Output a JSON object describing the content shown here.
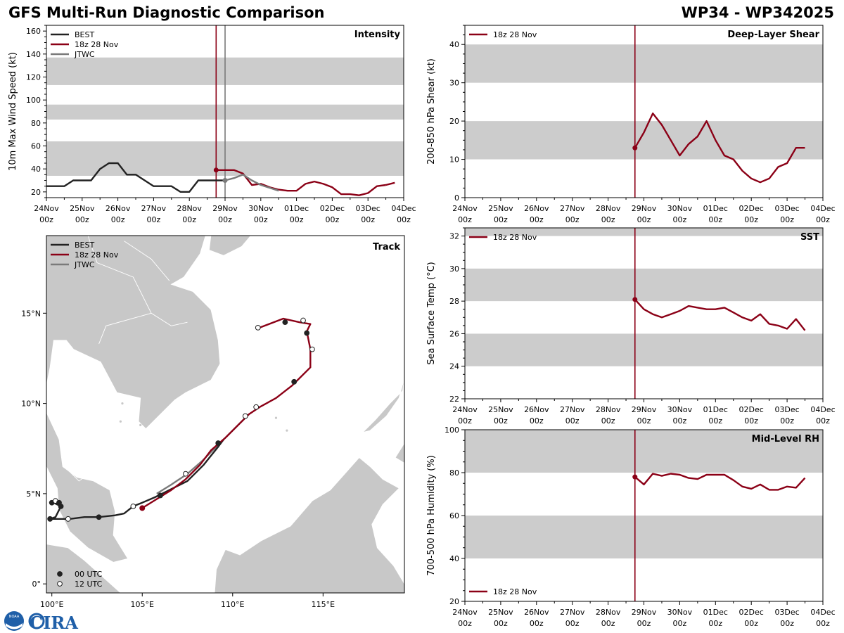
{
  "header": {
    "title": "GFS Multi-Run Diagnostic Comparison",
    "storm_id": "WP34 - WP342025"
  },
  "logo": {
    "text": "CIRA",
    "badge": "NOAA"
  },
  "colors": {
    "best": "#222222",
    "gfs": "#8b0016",
    "jtwc": "#7a7a7a",
    "band": "#cccccc",
    "land": "#c8c8c8"
  },
  "chart_data": [
    {
      "id": "intensity",
      "type": "line",
      "title": "Intensity",
      "ylabel": "10m Max Wind Speed (kt)",
      "xlim": [
        0,
        10
      ],
      "ylim": [
        15,
        165
      ],
      "yticks": [
        20,
        40,
        60,
        80,
        100,
        120,
        140,
        160
      ],
      "xtick_labels": [
        [
          "24Nov",
          "00z"
        ],
        [
          "25Nov",
          "00z"
        ],
        [
          "26Nov",
          "00z"
        ],
        [
          "27Nov",
          "00z"
        ],
        [
          "28Nov",
          "00z"
        ],
        [
          "29Nov",
          "00z"
        ],
        [
          "30Nov",
          "00z"
        ],
        [
          "01Dec",
          "00z"
        ],
        [
          "02Dec",
          "00z"
        ],
        [
          "03Dec",
          "00z"
        ],
        [
          "04Dec",
          "00z"
        ]
      ],
      "bands": [
        [
          34,
          64
        ],
        [
          83,
          96
        ],
        [
          113,
          137
        ]
      ],
      "init_line": 4.75,
      "jtwc_line": 5.0,
      "legend": [
        "BEST",
        "18z 28 Nov",
        "JTWC"
      ],
      "series": [
        {
          "name": "BEST",
          "x": [
            0,
            0.25,
            0.5,
            0.75,
            1,
            1.25,
            1.5,
            1.75,
            2,
            2.25,
            2.5,
            2.75,
            3,
            3.25,
            3.5,
            3.75,
            4,
            4.25,
            4.5,
            4.75,
            5
          ],
          "values": [
            25,
            25,
            25,
            30,
            30,
            30,
            40,
            45,
            45,
            35,
            35,
            30,
            25,
            25,
            25,
            20,
            20,
            30,
            30,
            30,
            30
          ]
        },
        {
          "name": "18z 28 Nov",
          "x": [
            4.75,
            5,
            5.25,
            5.5,
            5.75,
            6,
            6.25,
            6.5,
            6.75,
            7,
            7.25,
            7.5,
            7.75,
            8,
            8.25,
            8.5,
            8.75,
            9,
            9.25,
            9.5
          ],
          "values": [
            39,
            39,
            39,
            36,
            26,
            27,
            24,
            22,
            21,
            21,
            27,
            29,
            27,
            24,
            18,
            18,
            17,
            19,
            25,
            26
          ]
        },
        {
          "name": "18z 28 Nov tail",
          "x": [
            9.5,
            9.75
          ],
          "values": [
            26,
            28
          ]
        },
        {
          "name": "JTWC",
          "x": [
            5,
            5.25,
            5.5,
            5.75,
            6,
            6.5
          ],
          "values": [
            30,
            32,
            35,
            30,
            26,
            21
          ]
        }
      ]
    },
    {
      "id": "shear",
      "type": "line",
      "title": "Deep-Layer Shear",
      "ylabel": "200-850 hPa Shear (kt)",
      "xlim": [
        0,
        10
      ],
      "ylim": [
        0,
        45
      ],
      "yticks": [
        0,
        10,
        20,
        30,
        40
      ],
      "xtick_labels": [
        [
          "24Nov",
          "00z"
        ],
        [
          "25Nov",
          "00z"
        ],
        [
          "26Nov",
          "00z"
        ],
        [
          "27Nov",
          "00z"
        ],
        [
          "28Nov",
          "00z"
        ],
        [
          "29Nov",
          "00z"
        ],
        [
          "30Nov",
          "00z"
        ],
        [
          "01Dec",
          "00z"
        ],
        [
          "02Dec",
          "00z"
        ],
        [
          "03Dec",
          "00z"
        ],
        [
          "04Dec",
          "00z"
        ]
      ],
      "bands": [
        [
          10,
          20
        ],
        [
          30,
          40
        ]
      ],
      "init_line": 4.75,
      "legend": [
        "18z 28 Nov"
      ],
      "series": [
        {
          "name": "18z 28 Nov",
          "x": [
            4.75,
            5,
            5.25,
            5.5,
            5.75,
            6,
            6.25,
            6.5,
            6.75,
            7,
            7.25,
            7.5,
            7.75,
            8,
            8.25,
            8.5,
            8.75,
            9,
            9.25,
            9.5
          ],
          "values": [
            13,
            17,
            22,
            19,
            15,
            11,
            14,
            16,
            20,
            15,
            11,
            10,
            7,
            5,
            4,
            5,
            8,
            9,
            13,
            13
          ]
        }
      ]
    },
    {
      "id": "sst",
      "type": "line",
      "title": "SST",
      "ylabel": "Sea Surface Temp (°C)",
      "xlim": [
        0,
        10
      ],
      "ylim": [
        22,
        32.5
      ],
      "yticks": [
        22,
        24,
        26,
        28,
        30,
        32
      ],
      "xtick_labels": [
        [
          "24Nov",
          "00z"
        ],
        [
          "25Nov",
          "00z"
        ],
        [
          "26Nov",
          "00z"
        ],
        [
          "27Nov",
          "00z"
        ],
        [
          "28Nov",
          "00z"
        ],
        [
          "29Nov",
          "00z"
        ],
        [
          "30Nov",
          "00z"
        ],
        [
          "01Dec",
          "00z"
        ],
        [
          "02Dec",
          "00z"
        ],
        [
          "03Dec",
          "00z"
        ],
        [
          "04Dec",
          "00z"
        ]
      ],
      "bands": [
        [
          24,
          26
        ],
        [
          28,
          30
        ],
        [
          32,
          32.5
        ]
      ],
      "init_line": 4.75,
      "legend": [
        "18z 28 Nov"
      ],
      "series": [
        {
          "name": "18z 28 Nov",
          "x": [
            4.75,
            5,
            5.25,
            5.5,
            5.75,
            6,
            6.25,
            6.5,
            6.75,
            7,
            7.25,
            7.5,
            7.75,
            8,
            8.25,
            8.5,
            8.75,
            9,
            9.25,
            9.5
          ],
          "values": [
            28.1,
            27.5,
            27.2,
            27.0,
            27.2,
            27.4,
            27.7,
            27.6,
            27.5,
            27.5,
            27.6,
            27.3,
            27.0,
            26.8,
            27.2,
            26.6,
            26.5,
            26.3,
            26.9,
            26.2
          ]
        }
      ]
    },
    {
      "id": "rh",
      "type": "line",
      "title": "Mid-Level RH",
      "ylabel": "700-500 hPa Humidity (%)",
      "xlim": [
        0,
        10
      ],
      "ylim": [
        20,
        100
      ],
      "yticks": [
        20,
        40,
        60,
        80,
        100
      ],
      "xtick_labels": [
        [
          "24Nov",
          "00z"
        ],
        [
          "25Nov",
          "00z"
        ],
        [
          "26Nov",
          "00z"
        ],
        [
          "27Nov",
          "00z"
        ],
        [
          "28Nov",
          "00z"
        ],
        [
          "29Nov",
          "00z"
        ],
        [
          "30Nov",
          "00z"
        ],
        [
          "01Dec",
          "00z"
        ],
        [
          "02Dec",
          "00z"
        ],
        [
          "03Dec",
          "00z"
        ],
        [
          "04Dec",
          "00z"
        ]
      ],
      "bands": [
        [
          40,
          60
        ],
        [
          80,
          100
        ]
      ],
      "init_line": 4.75,
      "legend": [
        "18z 28 Nov"
      ],
      "series": [
        {
          "name": "18z 28 Nov",
          "x": [
            4.75,
            5,
            5.25,
            5.5,
            5.75,
            6,
            6.25,
            6.5,
            6.75,
            7,
            7.25,
            7.5,
            7.75,
            8,
            8.25,
            8.5,
            8.75,
            9,
            9.25,
            9.5
          ],
          "values": [
            78,
            74.5,
            79.5,
            78.5,
            79.5,
            79,
            77.5,
            77,
            79,
            79,
            79,
            76.5,
            73.5,
            72.5,
            74.5,
            72,
            72,
            73.5,
            73,
            77.5
          ]
        }
      ]
    },
    {
      "id": "track",
      "type": "scatter",
      "title": "Track",
      "xlim": [
        99.7,
        119.5
      ],
      "ylim": [
        -0.5,
        19.3
      ],
      "xtick_values": [
        100,
        105,
        110,
        115
      ],
      "xtick_labels": [
        "100°E",
        "105°E",
        "110°E",
        "115°E"
      ],
      "ytick_values": [
        0,
        5,
        10,
        15
      ],
      "ytick_labels": [
        "0°",
        "5°N",
        "10°N",
        "15°N"
      ],
      "legend": [
        "BEST",
        "18z 28 Nov",
        "JTWC"
      ],
      "marker_legend": [
        "00 UTC",
        "12 UTC"
      ],
      "best": {
        "lon": [
          99.9,
          100.1,
          100.3,
          100.5,
          100.2,
          99.9,
          100.4,
          101.0,
          101.8,
          102.6,
          103.5,
          104.0,
          104.5,
          105.0,
          105.7,
          106.3,
          106.9,
          107.5,
          107.9,
          108.4,
          108.8,
          109.2,
          109.5
        ],
        "lat": [
          4.6,
          4.5,
          4.4,
          4.3,
          3.7,
          3.6,
          3.6,
          3.6,
          3.7,
          3.7,
          3.8,
          3.9,
          4.3,
          4.5,
          4.8,
          5.1,
          5.4,
          5.7,
          6.1,
          6.6,
          7.1,
          7.6,
          8.0
        ]
      },
      "best_markers": [
        {
          "lon": 100.0,
          "lat": 4.5,
          "filled": true
        },
        {
          "lon": 100.2,
          "lat": 4.6,
          "filled": false
        },
        {
          "lon": 100.4,
          "lat": 4.5,
          "filled": true
        },
        {
          "lon": 100.5,
          "lat": 4.3,
          "filled": true
        },
        {
          "lon": 99.9,
          "lat": 3.6,
          "filled": true
        },
        {
          "lon": 100.9,
          "lat": 3.6,
          "filled": false
        },
        {
          "lon": 102.6,
          "lat": 3.7,
          "filled": true
        },
        {
          "lon": 104.5,
          "lat": 4.3,
          "filled": false
        },
        {
          "lon": 106.0,
          "lat": 4.9,
          "filled": true
        },
        {
          "lon": 107.4,
          "lat": 6.1,
          "filled": false
        },
        {
          "lon": 109.2,
          "lat": 7.8,
          "filled": true
        }
      ],
      "gfs": {
        "lon": [
          105.0,
          105.8,
          106.6,
          107.4,
          108.2,
          108.8,
          109.6,
          110.3,
          110.9,
          111.5,
          112.4,
          113.3,
          114.3,
          114.3,
          114.1,
          114.3,
          113.7,
          112.8,
          111.5
        ],
        "lat": [
          4.2,
          4.7,
          5.2,
          5.8,
          6.6,
          7.4,
          8.1,
          8.8,
          9.4,
          9.8,
          10.3,
          11.0,
          12.0,
          13.0,
          14.0,
          14.4,
          14.5,
          14.7,
          14.2
        ]
      },
      "gfs_start": {
        "lon": 105.0,
        "lat": 4.2
      },
      "gfs_markers": [
        {
          "lon": 110.7,
          "lat": 9.3,
          "filled": false
        },
        {
          "lon": 111.3,
          "lat": 9.8,
          "filled": false
        },
        {
          "lon": 113.4,
          "lat": 11.2,
          "filled": true
        },
        {
          "lon": 114.4,
          "lat": 13.0,
          "filled": false
        },
        {
          "lon": 114.1,
          "lat": 13.9,
          "filled": true
        },
        {
          "lon": 113.9,
          "lat": 14.6,
          "filled": false
        },
        {
          "lon": 112.9,
          "lat": 14.5,
          "filled": true
        },
        {
          "lon": 111.4,
          "lat": 14.2,
          "filled": false
        }
      ],
      "jtwc": {
        "lon": [
          105.8,
          106.6,
          107.5,
          108.3,
          109.0,
          109.7,
          110.4,
          110.9
        ],
        "lat": [
          5.0,
          5.5,
          6.1,
          6.8,
          7.5,
          8.2,
          8.9,
          9.4
        ]
      }
    }
  ]
}
